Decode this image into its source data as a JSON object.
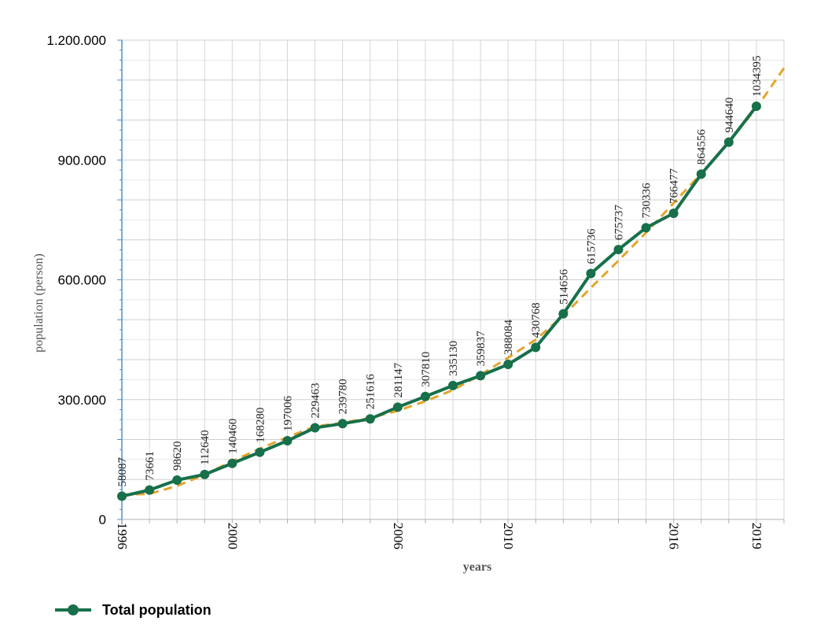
{
  "chart_data": {
    "type": "line",
    "title": "",
    "xlabel": "years",
    "ylabel": "population (person)",
    "ylim": [
      0,
      1200000
    ],
    "yticks": [
      {
        "value": 0,
        "label": "0"
      },
      {
        "value": 300000,
        "label": "300.000"
      },
      {
        "value": 600000,
        "label": "600.000"
      },
      {
        "value": 900000,
        "label": "900.000"
      },
      {
        "value": 1200000,
        "label": "1.200.000"
      }
    ],
    "xlim": [
      1996,
      2020
    ],
    "xticks": [
      {
        "value": 1996,
        "label": "1996"
      },
      {
        "value": 2000,
        "label": "2000"
      },
      {
        "value": 2006,
        "label": "2006"
      },
      {
        "value": 2010,
        "label": "2010"
      },
      {
        "value": 2016,
        "label": "2016"
      },
      {
        "value": 2019,
        "label": "2019"
      }
    ],
    "grid": true,
    "legend_position": "bottom-left",
    "series": [
      {
        "name": "Total population",
        "color": "#17704a",
        "x": [
          1996,
          1997,
          1998,
          1999,
          2000,
          2001,
          2002,
          2003,
          2004,
          2005,
          2006,
          2007,
          2008,
          2009,
          2010,
          2011,
          2012,
          2013,
          2014,
          2015,
          2016,
          2017,
          2018,
          2019
        ],
        "values": [
          58087,
          73661,
          98620,
          112640,
          140460,
          168280,
          197006,
          229463,
          239780,
          251616,
          281147,
          307810,
          335130,
          359837,
          388084,
          430768,
          514656,
          615736,
          675737,
          730336,
          766477,
          864556,
          944640,
          1034395
        ],
        "labels": [
          "58087",
          "73661",
          "98620",
          "112640",
          "140460",
          "168280",
          "197006",
          "229463",
          "239780",
          "251616",
          "281147",
          "307810",
          "335130",
          "359837",
          "388084",
          "430768",
          "514656",
          "615736",
          "675737",
          "730336",
          "766477",
          "864556",
          "944640",
          "1034395"
        ]
      }
    ],
    "trendline": {
      "style": "dashed",
      "color": "#e3a52c",
      "x": [
        1996,
        1997,
        1998,
        1999,
        2000,
        2001,
        2002,
        2003,
        2004,
        2005,
        2006,
        2007,
        2008,
        2009,
        2010,
        2011,
        2012,
        2013,
        2014,
        2015,
        2016,
        2017,
        2018,
        2019,
        2020
      ],
      "values": [
        62000,
        64000,
        84000,
        112000,
        146000,
        177000,
        206000,
        233000,
        242000,
        254000,
        272000,
        296000,
        324000,
        362000,
        405000,
        450000,
        510000,
        580000,
        648000,
        718000,
        792000,
        866000,
        945000,
        1030000,
        1130000
      ]
    }
  }
}
